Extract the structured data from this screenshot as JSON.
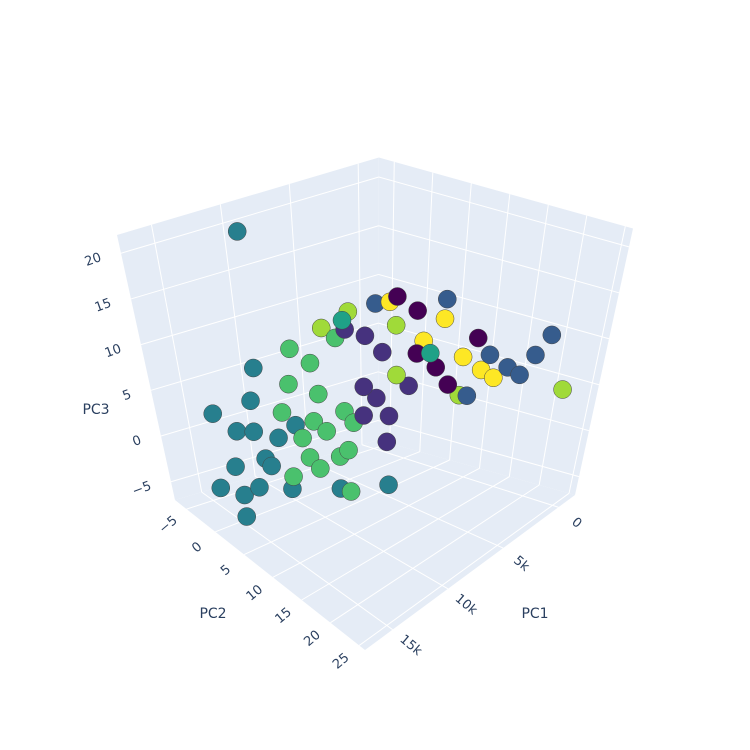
{
  "chart_data": {
    "type": "scatter3d",
    "xlabel": "PC1",
    "ylabel": "PC2",
    "zlabel": "PC3",
    "xlim": [
      -1500,
      17500
    ],
    "ylim": [
      -7,
      26
    ],
    "zlim": [
      -7,
      22
    ],
    "xticks": [
      0,
      {
        "value": 5000,
        "label": "5k"
      },
      {
        "value": 10000,
        "label": "10k"
      },
      {
        "value": 15000,
        "label": "15k"
      }
    ],
    "yticks": [
      {
        "value": -5,
        "label": "−5"
      },
      0,
      5,
      10,
      15,
      20,
      25
    ],
    "zticks": [
      {
        "value": -5,
        "label": "−5"
      },
      0,
      5,
      10,
      15,
      20
    ],
    "grid": true,
    "series": [
      {
        "color": "#277f8e",
        "x": [
          13500,
          14000,
          12500,
          15000,
          13000,
          12000,
          14500,
          11500,
          12800,
          13800,
          11000,
          15500,
          10500,
          12200,
          11800,
          11000,
          9000,
          8000
        ],
        "y": [
          -3,
          -1,
          -4,
          1,
          0,
          -2,
          3,
          1,
          2,
          -5,
          3,
          -2,
          -4,
          4,
          -1,
          -3,
          6,
          12
        ],
        "z": [
          -3,
          -5,
          0,
          -6,
          2,
          4,
          -2,
          1,
          -1,
          2,
          3,
          -4,
          6,
          -3,
          -2,
          21.5,
          -4,
          -2
        ]
      },
      {
        "color": "#4ac16d",
        "x": [
          11000,
          10500,
          10000,
          11500,
          9500,
          10000,
          9000,
          12000,
          10800,
          9800,
          11200,
          9500,
          8800,
          12500,
          10200,
          8500,
          10000
        ],
        "y": [
          4,
          5,
          6,
          6,
          4,
          8,
          7,
          3,
          2,
          9,
          7,
          3,
          8,
          5,
          10,
          5,
          1
        ],
        "z": [
          2,
          4,
          3,
          1,
          6,
          1,
          5,
          5,
          7,
          2,
          0,
          9,
          4,
          -1,
          -2,
          12,
          10
        ]
      },
      {
        "color": "#46327e",
        "x": [
          8500,
          8000,
          7500,
          9000,
          7000,
          8200,
          7800,
          6500,
          8800
        ],
        "y": [
          9,
          10,
          11,
          10,
          9,
          12,
          8,
          12,
          7
        ],
        "z": [
          5,
          7,
          5,
          9,
          11,
          3,
          13,
          8,
          14
        ]
      },
      {
        "color": "#440154",
        "x": [
          6000,
          5500,
          6500,
          4000,
          5000,
          7000
        ],
        "y": [
          12,
          14,
          13,
          17,
          15,
          11
        ],
        "z": [
          16,
          10,
          12,
          13,
          8,
          18
        ]
      },
      {
        "color": "#fde725",
        "x": [
          6000,
          4500,
          3500,
          5000,
          7000,
          3000
        ],
        "y": [
          13,
          16,
          17,
          14,
          10,
          18
        ],
        "z": [
          13,
          11,
          9,
          15,
          17,
          8
        ]
      },
      {
        "color": "#a0da39",
        "x": [
          8000,
          6500,
          4000,
          500,
          9000,
          7500
        ],
        "y": [
          6,
          10,
          15,
          24,
          4,
          12
        ],
        "z": [
          15,
          14,
          6,
          6,
          13,
          10
        ]
      },
      {
        "color": "#365c8d",
        "x": [
          3500,
          2500,
          1500,
          1000,
          7000,
          5500,
          4500,
          2000
        ],
        "y": [
          18,
          19,
          21,
          22,
          8,
          15,
          17,
          20
        ],
        "z": [
          11,
          9,
          10,
          12,
          16,
          18,
          7,
          8
        ]
      },
      {
        "color": "#1fa187",
        "x": [
          6000,
          9500
        ],
        "y": [
          14,
          8
        ],
        "z": [
          12,
          16
        ]
      }
    ]
  }
}
